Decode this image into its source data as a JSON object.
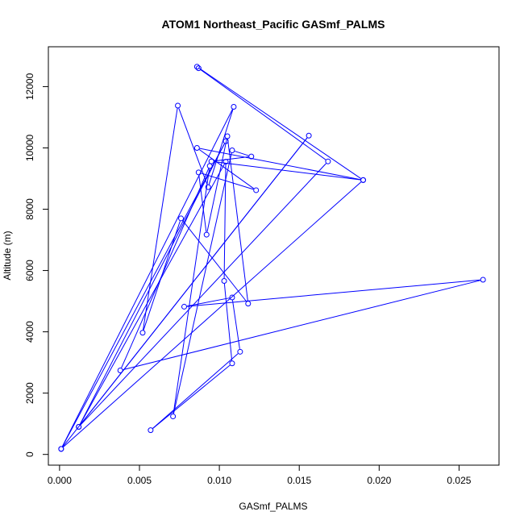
{
  "chart_data": {
    "type": "line",
    "title": "ATOM1 Northeast_Pacific GASmf_PALMS",
    "xlabel": "GASmf_PALMS",
    "ylabel": "Altitude (m)",
    "xlim": [
      -0.0007,
      0.0275
    ],
    "ylim": [
      -350,
      13300
    ],
    "xticks": [
      0.0,
      0.005,
      0.01,
      0.015,
      0.02,
      0.025
    ],
    "xtick_labels": [
      "0.000",
      "0.005",
      "0.010",
      "0.015",
      "0.020",
      "0.025"
    ],
    "yticks": [
      0,
      2000,
      4000,
      6000,
      8000,
      10000,
      12000
    ],
    "ytick_labels": [
      "0",
      "2000",
      "4000",
      "6000",
      "8000",
      "10000",
      "12000"
    ],
    "grid": false,
    "series": [
      {
        "color": "#0000ff",
        "marker": "open-circle",
        "points": [
          [
            0.0086,
            12650
          ],
          [
            0.019,
            8950
          ],
          [
            0.0086,
            10000
          ],
          [
            0.0123,
            8620
          ],
          [
            0.0087,
            9200
          ],
          [
            0.0092,
            7170
          ],
          [
            0.0105,
            10380
          ],
          [
            0.0118,
            4920
          ],
          [
            0.0076,
            7700
          ],
          [
            0.0052,
            3970
          ],
          [
            0.0074,
            11380
          ],
          [
            0.0093,
            8720
          ],
          [
            0.0109,
            11340
          ],
          [
            0.0001,
            180
          ],
          [
            0.0104,
            10220
          ],
          [
            0.0012,
            900
          ],
          [
            0.0104,
            9550
          ],
          [
            0.0103,
            5660
          ],
          [
            0.0108,
            2970
          ],
          [
            0.0057,
            790
          ],
          [
            0.0113,
            3350
          ],
          [
            0.0108,
            5120
          ],
          [
            0.0078,
            4820
          ],
          [
            0.0265,
            5700
          ],
          [
            0.0038,
            2740
          ],
          [
            0.0094,
            9410
          ],
          [
            0.0071,
            1240
          ],
          [
            0.0108,
            9920
          ],
          [
            0.012,
            9720
          ],
          [
            0.0095,
            9560
          ],
          [
            0.019,
            8950
          ],
          [
            0.0001,
            180
          ],
          [
            0.0156,
            10400
          ],
          [
            0.0012,
            900
          ],
          [
            0.0168,
            9560
          ],
          [
            0.0087,
            12600
          ]
        ]
      }
    ]
  }
}
